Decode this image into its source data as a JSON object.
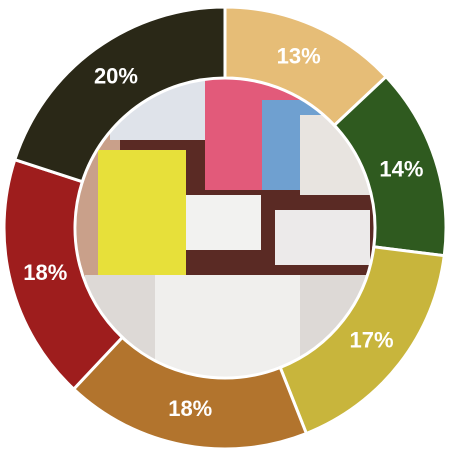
{
  "chart_data": {
    "type": "donut",
    "values": [
      13,
      14,
      17,
      18,
      18,
      20
    ],
    "value_labels": [
      "13%",
      "14%",
      "17%",
      "18%",
      "18%",
      "20%"
    ],
    "colors": [
      "#e6bd77",
      "#2f5a1f",
      "#c8b53c",
      "#b2742d",
      "#9e1d1d",
      "#2a2817"
    ]
  }
}
